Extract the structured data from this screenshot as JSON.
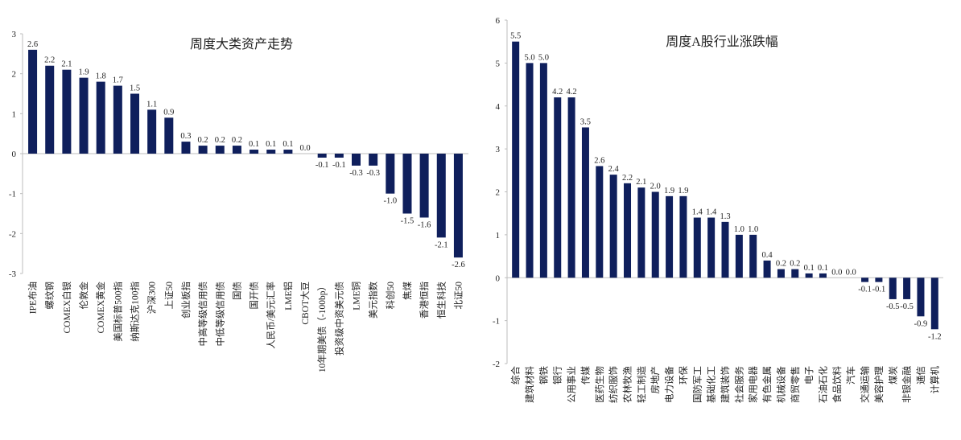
{
  "colors": {
    "bar": "#0f1f5c",
    "axis": "#bdbdbd",
    "text": "#222222"
  },
  "chart_data": [
    {
      "type": "bar",
      "title": "周度大类资产走势",
      "xlabel": "",
      "ylabel": "",
      "ylim": [
        -3,
        3
      ],
      "yticks": [
        -3,
        -2,
        -1,
        0,
        1,
        2,
        3
      ],
      "grid": false,
      "categories": [
        "IPE布油",
        "螺纹钢",
        "COMEX白银",
        "伦敦金",
        "COMEX黄金",
        "美国标普500指",
        "纳斯达克100指",
        "沪深300",
        "上证50",
        "创业板指",
        "中高等级信用债",
        "中低等级信用债",
        "国债",
        "国开债",
        "人民币/美元汇率",
        "LME铝",
        "CBOT大豆",
        "10年期美债（-100bp）",
        "投资级中资美元债",
        "LME铜",
        "美元指数",
        "科创50",
        "焦煤",
        "香港恒指",
        "恒生科技",
        "北证50"
      ],
      "values": [
        2.6,
        2.2,
        2.1,
        1.9,
        1.8,
        1.7,
        1.5,
        1.1,
        0.9,
        0.3,
        0.2,
        0.2,
        0.2,
        0.1,
        0.1,
        0.1,
        0.0,
        -0.1,
        -0.1,
        -0.3,
        -0.3,
        -1.0,
        -1.5,
        -1.6,
        -2.1,
        -2.6
      ],
      "value_labels": [
        "2.6",
        "2.2",
        "2.1",
        "1.9",
        "1.8",
        "1.7",
        "1.5",
        "1.1",
        "0.9",
        "0.3",
        "0.2",
        "0.2",
        "0.2",
        "0.1",
        "0.1",
        "0.1",
        "0.0",
        "-0.1",
        "-0.1",
        "-0.3",
        "-0.3",
        "-1.0",
        "-1.5",
        "-1.6",
        "-2.1",
        "-2.6"
      ]
    },
    {
      "type": "bar",
      "title": "周度A股行业涨跌幅",
      "xlabel": "",
      "ylabel": "",
      "ylim": [
        -2,
        6
      ],
      "yticks": [
        -2,
        -1,
        0,
        1,
        2,
        3,
        4,
        5,
        6
      ],
      "grid": false,
      "categories": [
        "综合",
        "建筑材料",
        "钢铁",
        "银行",
        "公用事业",
        "传媒",
        "医药生物",
        "纺织服饰",
        "农林牧渔",
        "轻工制造",
        "房地产",
        "电力设备",
        "环保",
        "国防军工",
        "基础化工",
        "建筑装饰",
        "社会服务",
        "家用电器",
        "有色金属",
        "机械设备",
        "商贸零售",
        "电子",
        "石油石化",
        "食品饮料",
        "汽车",
        "交通运输",
        "美容护理",
        "煤炭",
        "非银金融",
        "通信",
        "计算机"
      ],
      "values": [
        5.5,
        5.0,
        5.0,
        4.2,
        4.2,
        3.5,
        2.6,
        2.4,
        2.2,
        2.1,
        2.0,
        1.9,
        1.9,
        1.4,
        1.4,
        1.3,
        1.0,
        1.0,
        0.4,
        0.2,
        0.2,
        0.1,
        0.1,
        0.0,
        0.0,
        -0.1,
        -0.1,
        -0.5,
        -0.5,
        -0.9,
        -1.2
      ],
      "value_labels": [
        "5.5",
        "5.0",
        "5.0",
        "4.2",
        "4.2",
        "3.5",
        "2.6",
        "2.4",
        "2.2",
        "2.1",
        "2.0",
        "1.9",
        "1.9",
        "1.4",
        "1.4",
        "1.3",
        "1.0",
        "1.0",
        "0.4",
        "0.2",
        "0.2",
        "0.1",
        "0.1",
        "0.0",
        "0.0",
        "-0.1",
        "-0.1",
        "-0.5",
        "-0.5",
        "-0.9",
        "-1.2"
      ]
    }
  ]
}
